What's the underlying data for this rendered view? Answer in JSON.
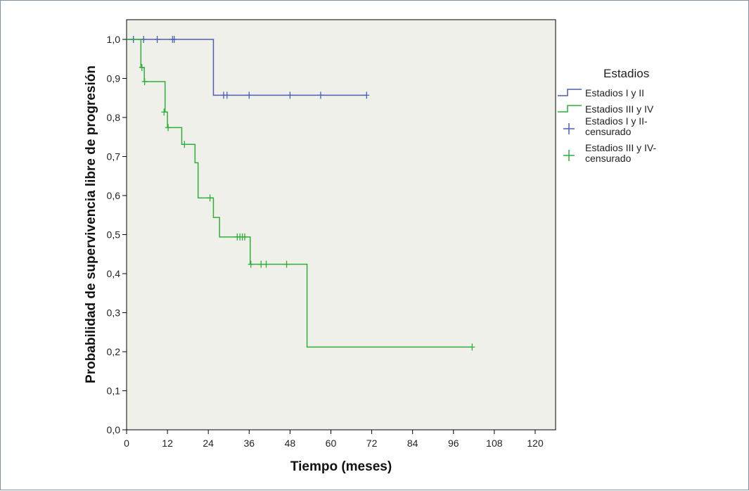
{
  "chart_data": {
    "type": "line",
    "subtype": "kaplan-meier",
    "title": "",
    "xlabel": "Tiempo (meses)",
    "ylabel": "Probabilidad de supervivencia libre de progresión",
    "xlim": [
      0,
      126
    ],
    "ylim": [
      0,
      1.0
    ],
    "xticks": [
      0,
      12,
      24,
      36,
      48,
      60,
      72,
      84,
      96,
      108,
      120
    ],
    "xtick_labels": [
      "0",
      "12",
      "24",
      "36",
      "48",
      "60",
      "72",
      "84",
      "96",
      "108",
      "120"
    ],
    "yticks": [
      0,
      0.1,
      0.2,
      0.3,
      0.4,
      0.5,
      0.6,
      0.7,
      0.8,
      0.9,
      1.0
    ],
    "ytick_labels": [
      "0,0",
      "0,1",
      "0,2",
      "0,3",
      "0,4",
      "0,5",
      "0,6",
      "0,7",
      "0,8",
      "0,9",
      "1,0"
    ],
    "grid": false,
    "legend_title": "Estadios",
    "legend_position": "right",
    "legend": [
      {
        "label": "Estadios I y II",
        "kind": "line",
        "color": "#4a5fb0"
      },
      {
        "label": "Estadios III y IV",
        "kind": "line",
        "color": "#2fae3a"
      },
      {
        "label_lines": [
          "Estadios I y II-",
          "censurado"
        ],
        "kind": "cross",
        "color": "#4a5fb0"
      },
      {
        "label_lines": [
          "Estadios III y IV-",
          "censurado"
        ],
        "kind": "cross",
        "color": "#2fae3a"
      }
    ],
    "series": [
      {
        "name": "Estadios I y II",
        "color": "#4a5fb0",
        "steps": [
          [
            0,
            1.0
          ],
          [
            25.5,
            0.857
          ],
          [
            70.5,
            0.857
          ]
        ],
        "censored": [
          [
            2,
            1.0
          ],
          [
            5,
            1.0
          ],
          [
            9,
            1.0
          ],
          [
            13.5,
            1.0
          ],
          [
            14,
            1.0
          ],
          [
            28.5,
            0.857
          ],
          [
            29.5,
            0.857
          ],
          [
            36,
            0.857
          ],
          [
            48,
            0.857
          ],
          [
            57,
            0.857
          ],
          [
            70.5,
            0.857
          ]
        ]
      },
      {
        "name": "Estadios III y IV",
        "color": "#2fae3a",
        "steps": [
          [
            0,
            1.0
          ],
          [
            4.2,
            0.928
          ],
          [
            5.2,
            0.892
          ],
          [
            11.3,
            0.814
          ],
          [
            12,
            0.774
          ],
          [
            16.2,
            0.731
          ],
          [
            20.1,
            0.684
          ],
          [
            21,
            0.594
          ],
          [
            25.5,
            0.544
          ],
          [
            27.3,
            0.494
          ],
          [
            36.3,
            0.424
          ],
          [
            53,
            0.212
          ],
          [
            101.5,
            0.212
          ]
        ],
        "censored": [
          [
            4.5,
            0.928
          ],
          [
            5.3,
            0.892
          ],
          [
            11,
            0.814
          ],
          [
            12.2,
            0.774
          ],
          [
            17,
            0.731
          ],
          [
            24.5,
            0.594
          ],
          [
            32.5,
            0.494
          ],
          [
            33.3,
            0.494
          ],
          [
            34,
            0.494
          ],
          [
            34.7,
            0.494
          ],
          [
            36.5,
            0.424
          ],
          [
            39.5,
            0.424
          ],
          [
            41,
            0.424
          ],
          [
            47,
            0.424
          ],
          [
            101.5,
            0.212
          ]
        ]
      }
    ]
  }
}
